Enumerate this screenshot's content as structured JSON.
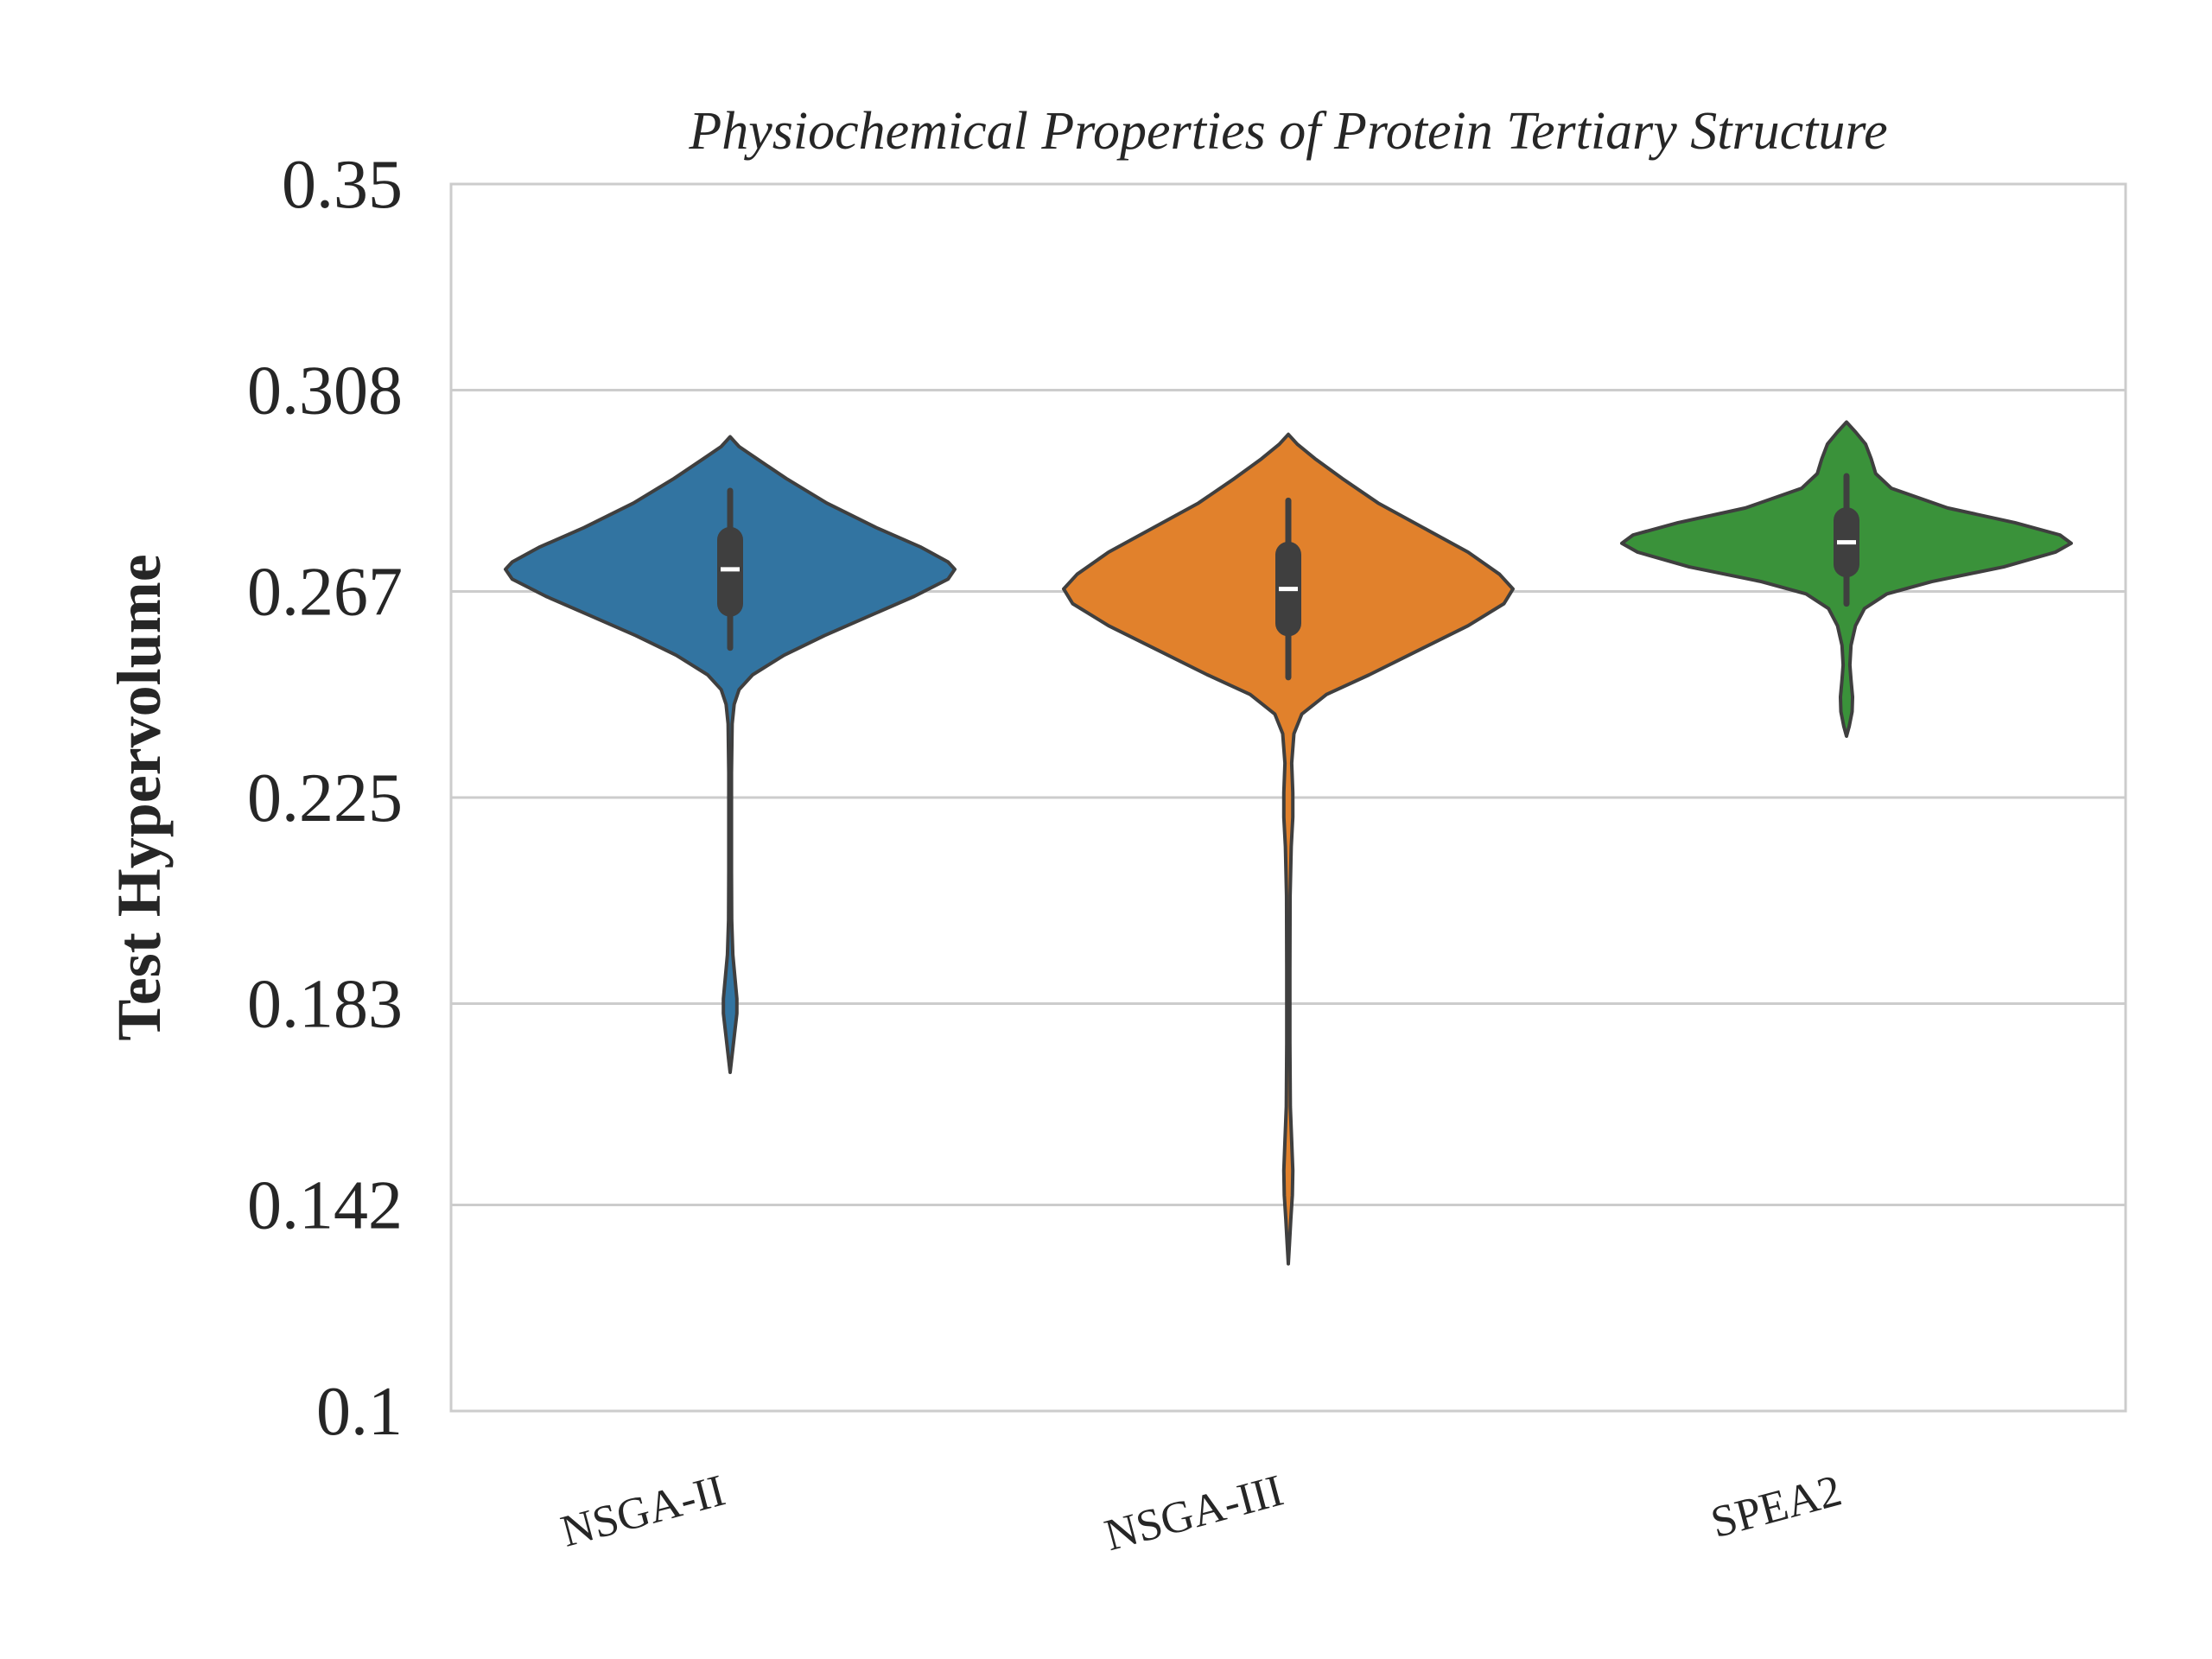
{
  "chart_data": {
    "type": "violin",
    "title": "Physiochemical Properties of Protein Tertiary Structure",
    "xlabel": "",
    "ylabel": "Test Hypervolume",
    "ylim": [
      0.1,
      0.35
    ],
    "yticks": [
      "0.35",
      "0.308",
      "0.267",
      "0.225",
      "0.183",
      "0.142",
      "0.1"
    ],
    "ytick_values": [
      0.35,
      0.308,
      0.267,
      0.225,
      0.183,
      0.142,
      0.1
    ],
    "grid": "horizontal",
    "categories": [
      "NSGA-II",
      "NSGA-III",
      "SPEA2"
    ],
    "series": [
      {
        "category": "NSGA-II",
        "color": "#3274a1",
        "median": 0.2715,
        "q1": 0.2645,
        "q3": 0.2775,
        "whisker_low": 0.2555,
        "whisker_high": 0.2875,
        "min": 0.169,
        "max": 0.2985,
        "density": [
          [
            0.2985,
            0.0
          ],
          [
            0.2965,
            0.04
          ],
          [
            0.294,
            0.12
          ],
          [
            0.29,
            0.25
          ],
          [
            0.285,
            0.43
          ],
          [
            0.28,
            0.65
          ],
          [
            0.276,
            0.85
          ],
          [
            0.273,
            0.97
          ],
          [
            0.2715,
            1.0
          ],
          [
            0.2695,
            0.97
          ],
          [
            0.266,
            0.82
          ],
          [
            0.262,
            0.62
          ],
          [
            0.258,
            0.42
          ],
          [
            0.254,
            0.24
          ],
          [
            0.25,
            0.1
          ],
          [
            0.247,
            0.04
          ],
          [
            0.244,
            0.018
          ],
          [
            0.24,
            0.009
          ],
          [
            0.23,
            0.006
          ],
          [
            0.22,
            0.006
          ],
          [
            0.21,
            0.006
          ],
          [
            0.2,
            0.007
          ],
          [
            0.193,
            0.012
          ],
          [
            0.188,
            0.022
          ],
          [
            0.184,
            0.03
          ],
          [
            0.181,
            0.03
          ],
          [
            0.177,
            0.02
          ],
          [
            0.173,
            0.01
          ],
          [
            0.169,
            0.0
          ]
        ]
      },
      {
        "category": "NSGA-III",
        "color": "#e1812c",
        "median": 0.2675,
        "q1": 0.2605,
        "q3": 0.2745,
        "whisker_low": 0.2495,
        "whisker_high": 0.2855,
        "min": 0.13,
        "max": 0.299,
        "density": [
          [
            0.299,
            0.0
          ],
          [
            0.297,
            0.04
          ],
          [
            0.294,
            0.12
          ],
          [
            0.29,
            0.24
          ],
          [
            0.285,
            0.4
          ],
          [
            0.28,
            0.6
          ],
          [
            0.275,
            0.8
          ],
          [
            0.2705,
            0.94
          ],
          [
            0.2675,
            1.0
          ],
          [
            0.2645,
            0.96
          ],
          [
            0.26,
            0.8
          ],
          [
            0.255,
            0.58
          ],
          [
            0.25,
            0.36
          ],
          [
            0.246,
            0.17
          ],
          [
            0.242,
            0.06
          ],
          [
            0.238,
            0.025
          ],
          [
            0.232,
            0.015
          ],
          [
            0.226,
            0.02
          ],
          [
            0.221,
            0.02
          ],
          [
            0.215,
            0.013
          ],
          [
            0.205,
            0.008
          ],
          [
            0.19,
            0.007
          ],
          [
            0.175,
            0.007
          ],
          [
            0.162,
            0.009
          ],
          [
            0.155,
            0.015
          ],
          [
            0.149,
            0.02
          ],
          [
            0.144,
            0.018
          ],
          [
            0.139,
            0.011
          ],
          [
            0.134,
            0.005
          ],
          [
            0.13,
            0.0
          ]
        ]
      },
      {
        "category": "SPEA2",
        "color": "#3a923a",
        "median": 0.277,
        "q1": 0.2725,
        "q3": 0.2815,
        "whisker_low": 0.2645,
        "whisker_high": 0.2905,
        "min": 0.2375,
        "max": 0.3015,
        "density": [
          [
            0.3015,
            0.0
          ],
          [
            0.2995,
            0.04
          ],
          [
            0.297,
            0.085
          ],
          [
            0.294,
            0.11
          ],
          [
            0.291,
            0.13
          ],
          [
            0.288,
            0.2
          ],
          [
            0.284,
            0.45
          ],
          [
            0.281,
            0.75
          ],
          [
            0.2785,
            0.95
          ],
          [
            0.2768,
            1.0
          ],
          [
            0.275,
            0.93
          ],
          [
            0.272,
            0.7
          ],
          [
            0.269,
            0.38
          ],
          [
            0.2665,
            0.18
          ],
          [
            0.2635,
            0.08
          ],
          [
            0.26,
            0.04
          ],
          [
            0.256,
            0.02
          ],
          [
            0.252,
            0.015
          ],
          [
            0.249,
            0.02
          ],
          [
            0.2455,
            0.027
          ],
          [
            0.2425,
            0.025
          ],
          [
            0.2395,
            0.012
          ],
          [
            0.2375,
            0.0
          ]
        ]
      }
    ]
  }
}
